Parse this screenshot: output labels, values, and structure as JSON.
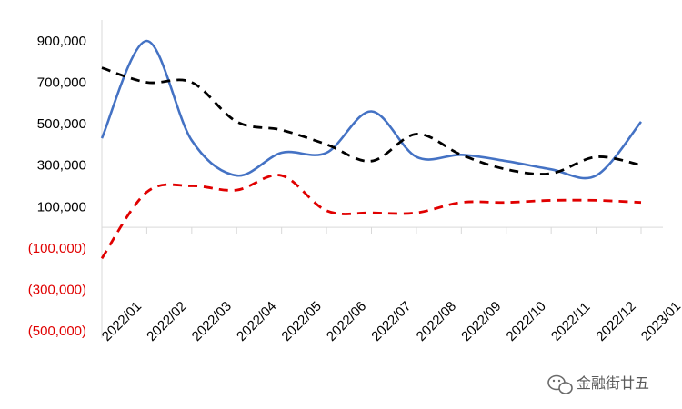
{
  "chart_data": {
    "type": "line",
    "title": "",
    "xlabel": "",
    "ylabel": "",
    "ylim": [
      -500000,
      1000000
    ],
    "grid": false,
    "legend": "none",
    "categories": [
      "2022/01",
      "2022/02",
      "2022/03",
      "2022/04",
      "2022/05",
      "2022/06",
      "2022/07",
      "2022/08",
      "2022/09",
      "2022/10",
      "2022/11",
      "2022/12",
      "2023/01"
    ],
    "y_ticks": [
      {
        "value": 900000,
        "label": "900,000",
        "color": "#000000"
      },
      {
        "value": 700000,
        "label": "700,000",
        "color": "#000000"
      },
      {
        "value": 500000,
        "label": "500,000",
        "color": "#000000"
      },
      {
        "value": 300000,
        "label": "300,000",
        "color": "#000000"
      },
      {
        "value": 100000,
        "label": "100,000",
        "color": "#000000"
      },
      {
        "value": -100000,
        "label": "(100,000)",
        "color": "#e00000"
      },
      {
        "value": -300000,
        "label": "(300,000)",
        "color": "#e00000"
      },
      {
        "value": -500000,
        "label": "(500,000)",
        "color": "#e00000"
      }
    ],
    "series": [
      {
        "color": "#4472c4",
        "style": "solid",
        "values": [
          430000,
          900000,
          420000,
          250000,
          360000,
          360000,
          560000,
          340000,
          350000,
          320000,
          280000,
          250000,
          510000
        ]
      },
      {
        "color": "#000000",
        "style": "dashed",
        "values": [
          770000,
          700000,
          700000,
          510000,
          470000,
          400000,
          320000,
          450000,
          350000,
          280000,
          260000,
          340000,
          300000
        ]
      },
      {
        "color": "#e00000",
        "style": "dashed",
        "values": [
          -150000,
          170000,
          200000,
          180000,
          250000,
          80000,
          70000,
          70000,
          120000,
          120000,
          130000,
          130000,
          120000
        ]
      }
    ]
  },
  "watermark": {
    "text": "金融街廿五",
    "icon": "wechat-icon"
  }
}
